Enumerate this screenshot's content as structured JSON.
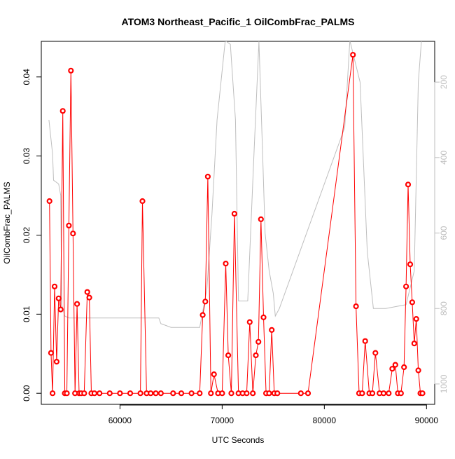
{
  "chart_data": {
    "type": "line",
    "title": "ATOM3 Northeast_Pacific_1 OilCombFrac_PALMS",
    "xlabel": "UTC Seconds",
    "ylabel": "OilCombFrac_PALMS",
    "xlim": [
      52300,
      90800
    ],
    "ylim": [
      -0.0014,
      0.0445
    ],
    "x_ticks": [
      60000,
      70000,
      80000,
      90000
    ],
    "x_tick_labels": [
      "60000",
      "70000",
      "80000",
      "90000"
    ],
    "y_ticks": [
      0.0,
      0.01,
      0.02,
      0.03,
      0.04
    ],
    "y_tick_labels": [
      "0.00",
      "0.01",
      "0.02",
      "0.03",
      "0.04"
    ],
    "y2_ticks": [
      200,
      400,
      600,
      800,
      1000
    ],
    "y2_tick_labels": [
      "200",
      "400",
      "600",
      "800",
      "1000"
    ],
    "y2_direction": "reversed",
    "y2_lim": [
      1054,
      92
    ],
    "grid": false,
    "colors": {
      "series": "#ff0000",
      "secondary": "#bebebe",
      "marker_fill": "#ffffff",
      "axis": "#000000"
    },
    "series": [
      {
        "values_x": [
          53100,
          53250,
          53400,
          53600,
          53800,
          54000,
          54200,
          54400,
          54600,
          54800,
          55000,
          55200,
          55400,
          55600,
          55800,
          56000,
          56200,
          56500,
          56800,
          57000,
          57200,
          57500,
          58000,
          59000,
          60000,
          61000,
          62000,
          62200,
          62600,
          63000,
          63500,
          64000,
          65200,
          66000,
          67000,
          67800,
          68100,
          68350,
          68600,
          68900,
          69200,
          69600,
          70000,
          70350,
          70600,
          70900,
          71200,
          71600,
          72000,
          72400,
          72700,
          73000,
          73300,
          73550,
          73800,
          74050,
          74300,
          74600,
          74850,
          75100,
          75400,
          77700,
          78400,
          82800,
          83100,
          83400,
          83700,
          84000,
          84400,
          84700,
          85000,
          85400,
          85800,
          86300,
          86650,
          86950,
          87200,
          87500,
          87800,
          88000,
          88200,
          88400,
          88600,
          88800,
          89000,
          89200,
          89400,
          89600
        ],
        "values_y": [
          0.0243,
          0.0051,
          0.0,
          0.0135,
          0.004,
          0.012,
          0.0106,
          0.0357,
          0.0,
          0.0,
          0.0212,
          0.0408,
          0.0202,
          0.0,
          0.0113,
          0.0,
          0.0,
          0.0,
          0.0128,
          0.0121,
          0.0,
          0.0,
          0.0,
          0.0,
          0.0,
          0.0,
          0.0,
          0.0243,
          0.0,
          0.0,
          0.0,
          0.0,
          0.0,
          0.0,
          0.0,
          0.0,
          0.0099,
          0.0116,
          0.0274,
          0.0,
          0.0024,
          0.0,
          0.0,
          0.0164,
          0.0048,
          0.0,
          0.0227,
          0.0,
          0.0,
          0.0,
          0.009,
          0.0,
          0.0048,
          0.0065,
          0.022,
          0.0096,
          0.0,
          0.0,
          0.008,
          0.0,
          0.0,
          0.0,
          0.0,
          0.0428,
          0.011,
          0.0,
          0.0,
          0.0066,
          0.0,
          0.0,
          0.0051,
          0.0,
          0.0,
          0.0,
          0.0031,
          0.0036,
          0.0,
          0.0,
          0.0033,
          0.0135,
          0.0264,
          0.0163,
          0.0115,
          0.0063,
          0.0094,
          0.0029,
          0.0,
          0.0
        ]
      },
      {
        "axis": "secondary",
        "values_x": [
          53050,
          53400,
          53500,
          54000,
          54200,
          54300,
          54600,
          55000,
          60000,
          63800,
          64000,
          64500,
          65000,
          66000,
          67800,
          68500,
          69000,
          69500,
          70300,
          70800,
          71300,
          71600,
          72500,
          73100,
          73600,
          73950,
          74200,
          74600,
          75000,
          75200,
          75600,
          82000,
          82500,
          83500,
          84200,
          84800,
          86000,
          87000,
          88000,
          88800,
          89200,
          89500
        ],
        "values_y": [
          300,
          390,
          460,
          470,
          500,
          790,
          820,
          825,
          825,
          825,
          840,
          845,
          850,
          850,
          850,
          750,
          550,
          300,
          90,
          100,
          300,
          780,
          780,
          400,
          92,
          380,
          600,
          700,
          760,
          820,
          800,
          320,
          90,
          200,
          650,
          800,
          800,
          795,
          790,
          700,
          200,
          92
        ]
      }
    ]
  }
}
